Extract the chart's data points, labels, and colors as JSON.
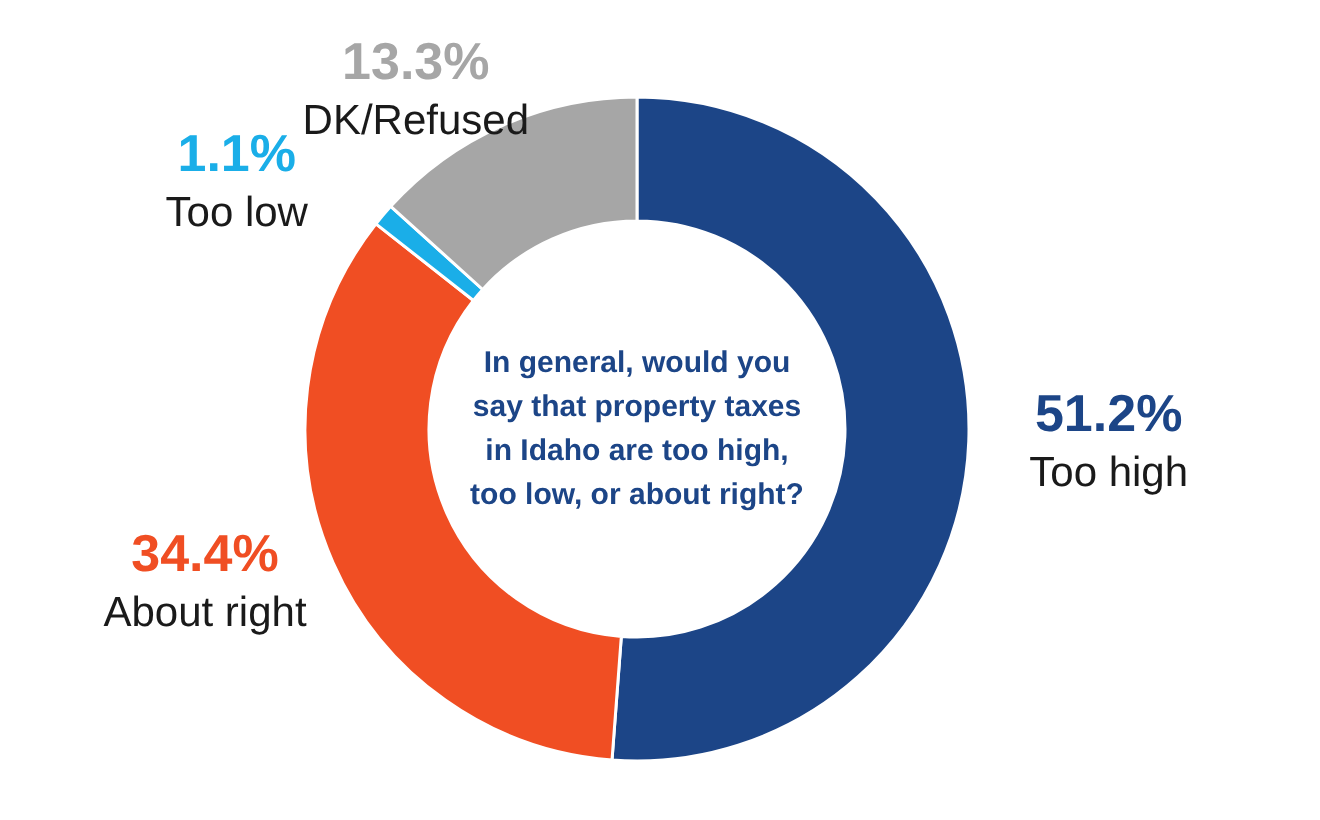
{
  "chart_data": {
    "type": "donut",
    "title": "In general, would you say that property taxes in Idaho are too high, too low, or about right?",
    "categories": [
      "Too high",
      "About right",
      "Too low",
      "DK/Refused"
    ],
    "values": [
      51.2,
      34.4,
      1.1,
      13.3
    ],
    "colors": [
      "#1c4587",
      "#f04e23",
      "#1aaee8",
      "#a6a6a6"
    ],
    "value_labels": [
      "51.2%",
      "34.4%",
      "1.1%",
      "13.3%"
    ]
  }
}
